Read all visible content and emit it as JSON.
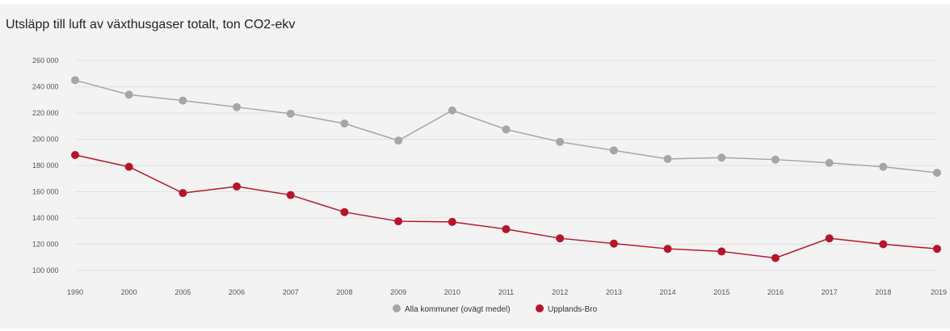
{
  "chart_data": {
    "type": "line",
    "title": "Utsläpp till luft av växthusgaser totalt, ton CO2-ekv",
    "categories": [
      "1990",
      "2000",
      "2005",
      "2006",
      "2007",
      "2008",
      "2009",
      "2010",
      "2011",
      "2012",
      "2013",
      "2014",
      "2015",
      "2016",
      "2017",
      "2018",
      "2019"
    ],
    "y_ticks": [
      "100 000",
      "120 000",
      "140 000",
      "160 000",
      "180 000",
      "200 000",
      "220 000",
      "240 000",
      "260 000"
    ],
    "ylim": [
      100000,
      260000
    ],
    "grid": true,
    "legend_position": "bottom",
    "series": [
      {
        "name": "Alla kommuner (ovägt medel)",
        "color": "#a6a6a6",
        "values": [
          245000,
          234000,
          229500,
          224500,
          219500,
          212000,
          199000,
          222000,
          207500,
          198000,
          191500,
          185000,
          186000,
          184500,
          182000,
          179000,
          174500
        ]
      },
      {
        "name": "Upplands-Bro",
        "color": "#b5152b",
        "values": [
          188000,
          179000,
          159000,
          164000,
          157500,
          144500,
          137500,
          137000,
          131500,
          124500,
          120500,
          116500,
          114500,
          109500,
          124500,
          120000,
          116500
        ]
      }
    ]
  }
}
